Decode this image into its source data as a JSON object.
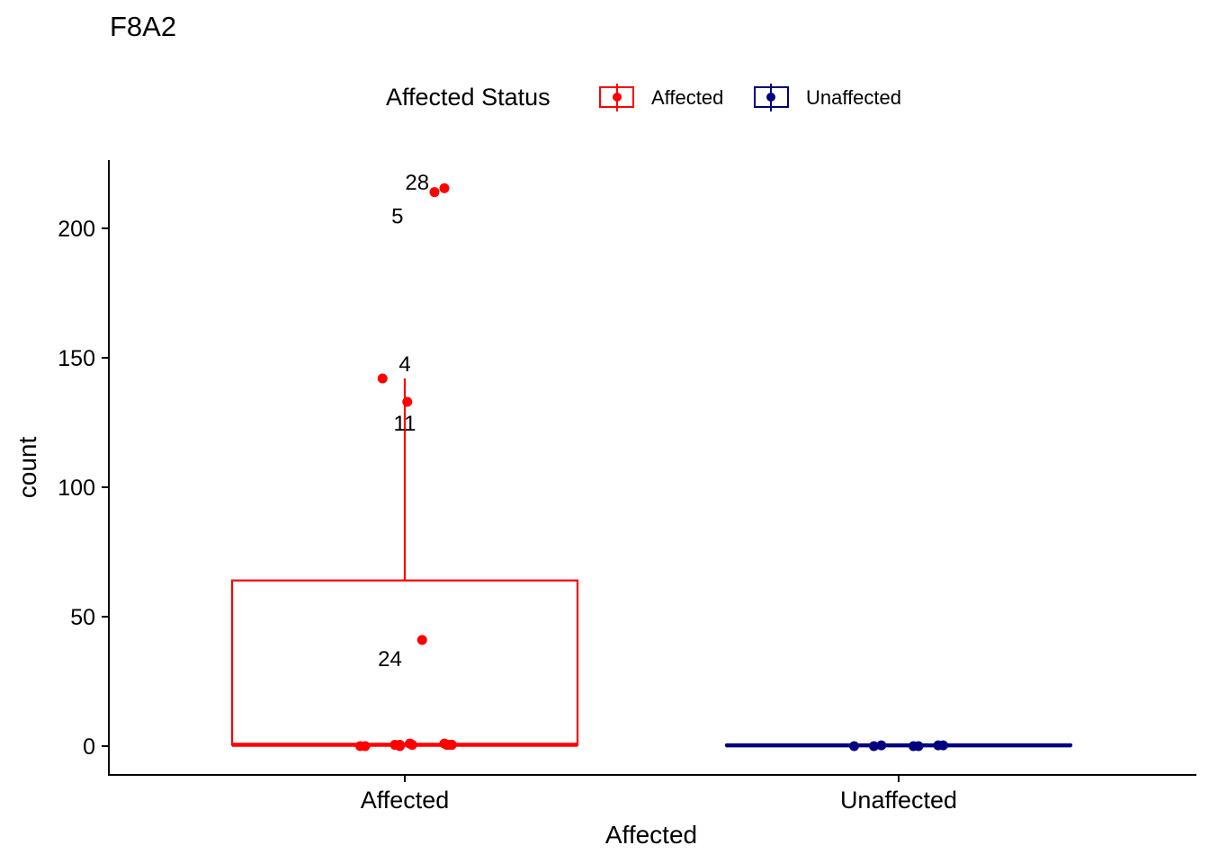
{
  "chart_data": {
    "type": "boxplot",
    "title": "F8A2",
    "xlabel": "Affected",
    "ylabel": "count",
    "ylim": [
      -10,
      228
    ],
    "y_ticks": [
      0,
      50,
      100,
      150,
      200
    ],
    "categories": [
      "Affected",
      "Unaffected"
    ],
    "legend": {
      "title": "Affected Status",
      "position": "top",
      "entries": [
        {
          "label": "Affected",
          "color": "#FF0000"
        },
        {
          "label": "Unaffected",
          "color": "#000080"
        }
      ]
    },
    "series": [
      {
        "name": "Affected",
        "color": "#FF0000",
        "box": {
          "min": 0,
          "q1": 0.5,
          "median": 0.5,
          "q3": 64,
          "max": 142
        },
        "points": [
          {
            "jitter": -0.18,
            "y": 0
          },
          {
            "jitter": -0.16,
            "y": 0
          },
          {
            "jitter": -0.04,
            "y": 0.5
          },
          {
            "jitter": -0.02,
            "y": 0
          },
          {
            "jitter": -0.02,
            "y": 0.5
          },
          {
            "jitter": 0.02,
            "y": 1
          },
          {
            "jitter": 0.03,
            "y": 0.5
          },
          {
            "jitter": 0.16,
            "y": 1
          },
          {
            "jitter": 0.17,
            "y": 0.5
          },
          {
            "jitter": 0.18,
            "y": 0.5
          },
          {
            "jitter": 0.19,
            "y": 0.5
          },
          {
            "jitter": -0.09,
            "y": 142
          },
          {
            "jitter": 0.01,
            "y": 133
          },
          {
            "jitter": 0.07,
            "y": 41
          },
          {
            "jitter": 0.12,
            "y": 214
          },
          {
            "jitter": 0.16,
            "y": 215.5
          }
        ],
        "labels": [
          {
            "text": "28",
            "x_offset": 0.05,
            "y": 218
          },
          {
            "text": "5",
            "x_offset": -0.03,
            "y": 205
          },
          {
            "text": "4",
            "x_offset": 0.0,
            "y": 148
          },
          {
            "text": "11",
            "x_offset": 0.0,
            "y": 125
          },
          {
            "text": "24",
            "x_offset": -0.06,
            "y": 34
          }
        ]
      },
      {
        "name": "Unaffected",
        "color": "#000080",
        "box": {
          "min": 0,
          "q1": 0.2,
          "median": 0.3,
          "q3": 0.5,
          "max": 0.5
        },
        "points": [
          {
            "jitter": -0.18,
            "y": 0
          },
          {
            "jitter": -0.1,
            "y": 0
          },
          {
            "jitter": -0.07,
            "y": 0.3
          },
          {
            "jitter": 0.06,
            "y": 0
          },
          {
            "jitter": 0.08,
            "y": 0
          },
          {
            "jitter": 0.16,
            "y": 0.3
          },
          {
            "jitter": 0.18,
            "y": 0.3
          }
        ],
        "labels": []
      }
    ]
  }
}
